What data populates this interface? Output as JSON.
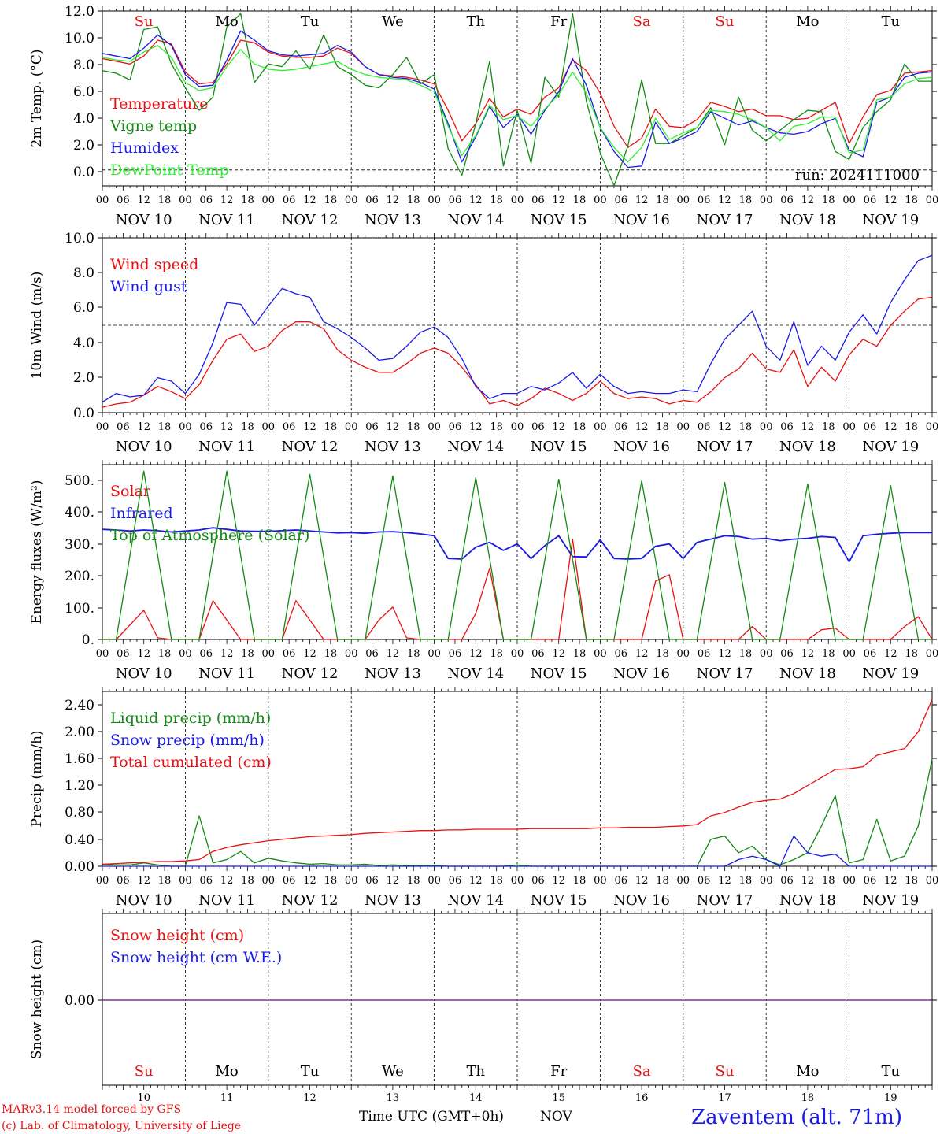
{
  "chart_data": [
    {
      "type": "line",
      "ylabel": "2m Temp. (°C)",
      "yticks": [
        "12.0",
        "10.0",
        "8.0",
        "6.0",
        "4.0",
        "2.0",
        "0.0"
      ],
      "ylim": [
        -1.2,
        12.0
      ],
      "reference_line": 0.0,
      "annotation": "run: 2024111000",
      "day_labels": [
        "Su",
        "Mo",
        "Tu",
        "We",
        "Th",
        "Fr",
        "Sa",
        "Su",
        "Mo",
        "Tu"
      ],
      "day_label_colors": [
        "#e81010",
        "#000000",
        "#000000",
        "#000000",
        "#000000",
        "#000000",
        "#e81010",
        "#e81010",
        "#000000",
        "#000000"
      ],
      "x_start_hour": 0,
      "x_step_hours": 6,
      "series": [
        {
          "name": "Temperature",
          "color": "#e81010",
          "values": [
            8.4,
            8.2,
            8.0,
            8.6,
            9.8,
            9.5,
            7.4,
            6.5,
            6.6,
            8.0,
            9.8,
            9.6,
            8.9,
            8.6,
            8.5,
            8.5,
            8.6,
            9.2,
            8.8,
            7.8,
            7.2,
            7.1,
            7.0,
            6.8,
            6.5,
            4.5,
            2.2,
            3.5,
            5.4,
            4.0,
            4.6,
            4.2,
            5.5,
            6.2,
            8.3,
            7.5,
            5.8,
            3.3,
            1.7,
            2.4,
            4.6,
            3.3,
            3.2,
            3.8,
            5.1,
            4.8,
            4.4,
            4.6,
            4.1,
            4.1,
            3.8,
            3.9,
            4.5,
            5.1,
            2.0,
            4.0,
            5.7,
            6.0,
            7.3,
            7.4,
            7.5
          ]
        },
        {
          "name": "Vigne temp",
          "color": "#138a13",
          "values": [
            7.5,
            7.3,
            6.8,
            10.6,
            10.8,
            8.0,
            6.2,
            4.5,
            5.5,
            10.8,
            11.8,
            6.6,
            8.0,
            7.8,
            9.0,
            7.6,
            10.2,
            7.8,
            7.2,
            6.4,
            6.2,
            7.2,
            8.5,
            6.5,
            7.2,
            1.6,
            -0.4,
            3.5,
            8.2,
            0.3,
            4.5,
            0.5,
            7.0,
            5.5,
            11.8,
            5.2,
            1.3,
            -1.2,
            1.8,
            6.8,
            2.0,
            2.0,
            2.6,
            3.2,
            4.7,
            1.9,
            5.5,
            3.0,
            2.2,
            3.0,
            3.8,
            4.5,
            4.4,
            1.4,
            0.8,
            3.2,
            4.4,
            5.3,
            8.0,
            6.7,
            6.7
          ]
        },
        {
          "name": "Humidex",
          "color": "#1a1ae6",
          "values": [
            8.8,
            8.6,
            8.4,
            9.2,
            10.2,
            9.4,
            7.2,
            6.3,
            6.4,
            8.3,
            10.5,
            9.8,
            9.0,
            8.7,
            8.6,
            8.7,
            8.8,
            9.4,
            8.9,
            7.8,
            7.2,
            7.0,
            6.9,
            6.6,
            6.1,
            3.5,
            0.6,
            2.5,
            4.8,
            3.2,
            4.2,
            2.7,
            4.5,
            5.9,
            8.4,
            6.4,
            3.2,
            1.4,
            0.2,
            0.3,
            3.6,
            2.0,
            2.4,
            2.9,
            4.4,
            3.9,
            3.4,
            3.7,
            3.2,
            2.8,
            2.7,
            2.9,
            3.5,
            3.9,
            1.5,
            1.0,
            5.1,
            5.5,
            7.0,
            7.3,
            7.4
          ]
        },
        {
          "name": "DewPoint Temp",
          "color": "#33ee33",
          "values": [
            8.5,
            8.3,
            8.2,
            8.9,
            9.4,
            8.5,
            6.6,
            6.0,
            6.2,
            7.8,
            9.1,
            8.0,
            7.6,
            7.5,
            7.6,
            7.8,
            8.0,
            8.2,
            7.6,
            7.2,
            7.0,
            6.9,
            6.8,
            6.4,
            5.9,
            3.3,
            1.1,
            2.6,
            4.9,
            3.8,
            4.1,
            3.3,
            4.6,
            5.7,
            7.4,
            5.8,
            3.2,
            1.7,
            0.6,
            1.7,
            3.9,
            2.3,
            2.8,
            3.2,
            4.5,
            4.4,
            4.2,
            3.8,
            3.2,
            2.2,
            3.3,
            3.5,
            4.0,
            4.0,
            1.3,
            1.5,
            5.3,
            5.5,
            6.5,
            6.9,
            7.0
          ]
        }
      ]
    },
    {
      "type": "line",
      "ylabel": "10m Wind (m/s)",
      "yticks": [
        "10.0",
        "8.0",
        "6.0",
        "4.0",
        "2.0",
        "0.0"
      ],
      "ylim": [
        0,
        10
      ],
      "reference_line": 5.0,
      "x_start_hour": 0,
      "x_step_hours": 6,
      "series": [
        {
          "name": "Wind speed",
          "color": "#e81010",
          "values": [
            0.3,
            0.5,
            0.6,
            1.0,
            1.5,
            1.2,
            0.8,
            1.6,
            3.0,
            4.2,
            4.5,
            3.5,
            3.8,
            4.7,
            5.2,
            5.2,
            4.8,
            3.6,
            3.0,
            2.6,
            2.3,
            2.3,
            2.8,
            3.4,
            3.7,
            3.4,
            2.6,
            1.6,
            0.5,
            0.7,
            0.4,
            0.8,
            1.4,
            1.1,
            0.7,
            1.1,
            1.8,
            1.1,
            0.8,
            0.9,
            0.8,
            0.5,
            0.7,
            0.6,
            1.2,
            2.0,
            2.5,
            3.4,
            2.5,
            2.3,
            3.6,
            1.5,
            2.6,
            1.8,
            3.3,
            4.2,
            3.8,
            5.0,
            5.8,
            6.5,
            6.6
          ]
        },
        {
          "name": "Wind gust",
          "color": "#1a1ae6",
          "values": [
            0.6,
            1.1,
            0.9,
            1.0,
            2.0,
            1.8,
            1.1,
            2.2,
            4.0,
            6.3,
            6.2,
            5.0,
            6.1,
            7.1,
            6.8,
            6.6,
            5.2,
            4.8,
            4.3,
            3.7,
            3.0,
            3.1,
            3.8,
            4.6,
            4.9,
            4.3,
            3.1,
            1.5,
            0.8,
            1.1,
            1.1,
            1.5,
            1.3,
            1.7,
            2.3,
            1.4,
            2.2,
            1.5,
            1.1,
            1.2,
            1.1,
            1.1,
            1.3,
            1.2,
            2.8,
            4.2,
            5.0,
            5.8,
            3.8,
            3.0,
            5.2,
            2.7,
            3.8,
            3.0,
            4.6,
            5.6,
            4.5,
            6.3,
            7.6,
            8.7,
            9.0
          ]
        }
      ]
    },
    {
      "type": "line",
      "ylabel": "Energy fluxes (W/m²)",
      "yticks": [
        "500.",
        "400.",
        "300.",
        "200.",
        "100.",
        "0."
      ],
      "ylim": [
        0,
        540
      ],
      "x_start_hour": 0,
      "x_step_hours": 6,
      "series": [
        {
          "name": "Solar",
          "color": "#e81010",
          "values": [
            0,
            0,
            45,
            90,
            5,
            0,
            0,
            0,
            120,
            60,
            0,
            0,
            0,
            0,
            120,
            60,
            0,
            0,
            0,
            0,
            60,
            100,
            5,
            0,
            0,
            0,
            0,
            80,
            220,
            0,
            0,
            0,
            0,
            0,
            310,
            0,
            0,
            0,
            0,
            0,
            180,
            200,
            0,
            0,
            0,
            0,
            0,
            40,
            0,
            0,
            0,
            0,
            30,
            35,
            0,
            0,
            0,
            0,
            40,
            70,
            0
          ]
        },
        {
          "name": "Infrared",
          "color": "#1a1ae6",
          "values": [
            340,
            338,
            335,
            338,
            336,
            332,
            335,
            338,
            345,
            340,
            335,
            334,
            334,
            336,
            338,
            335,
            332,
            329,
            330,
            328,
            332,
            333,
            330,
            326,
            320,
            250,
            248,
            285,
            300,
            275,
            295,
            250,
            290,
            320,
            256,
            255,
            308,
            250,
            248,
            250,
            288,
            295,
            250,
            300,
            310,
            320,
            318,
            310,
            312,
            305,
            310,
            312,
            318,
            315,
            240,
            320,
            325,
            328,
            330,
            330,
            330
          ]
        },
        {
          "name": "Top of Atmosphere (Solar)",
          "color": "#138a13",
          "values": [
            0,
            0,
            260,
            520,
            260,
            0,
            0,
            0,
            260,
            520,
            260,
            0,
            0,
            0,
            255,
            510,
            255,
            0,
            0,
            0,
            252,
            505,
            252,
            0,
            0,
            0,
            250,
            500,
            250,
            0,
            0,
            0,
            247,
            495,
            247,
            0,
            0,
            0,
            245,
            490,
            245,
            0,
            0,
            0,
            242,
            485,
            242,
            0,
            0,
            0,
            240,
            480,
            240,
            0,
            0,
            0,
            237,
            475,
            237,
            0,
            0
          ]
        }
      ]
    },
    {
      "type": "line",
      "ylabel": "Precip (mm/h)",
      "yticks": [
        "2.40",
        "2.00",
        "1.60",
        "1.20",
        "0.80",
        "0.40",
        "0.00"
      ],
      "ylim": [
        0,
        2.6
      ],
      "x_start_hour": 0,
      "x_step_hours": 6,
      "series": [
        {
          "name": "Liquid precip (mm/h)",
          "color": "#138a13",
          "values": [
            0.03,
            0.02,
            0.02,
            0.05,
            0.02,
            0.0,
            0.0,
            0.75,
            0.05,
            0.1,
            0.22,
            0.05,
            0.12,
            0.08,
            0.05,
            0.03,
            0.04,
            0.02,
            0.02,
            0.03,
            0.01,
            0.02,
            0.01,
            0.01,
            0.01,
            0.0,
            0.0,
            0.0,
            0.0,
            0.0,
            0.02,
            0.0,
            0.0,
            0.0,
            0.0,
            0.0,
            0.0,
            0.0,
            0.0,
            0.0,
            0.0,
            0.0,
            0.0,
            0.0,
            0.4,
            0.45,
            0.2,
            0.3,
            0.1,
            0.02,
            0.1,
            0.2,
            0.6,
            1.05,
            0.05,
            0.1,
            0.7,
            0.08,
            0.15,
            0.6,
            1.6
          ]
        },
        {
          "name": "Snow precip (mm/h)",
          "color": "#1a1ae6",
          "values": [
            0.0,
            0.0,
            0.0,
            0.0,
            0.0,
            0.0,
            0.0,
            0.0,
            0.0,
            0.0,
            0.0,
            0.0,
            0.0,
            0.0,
            0.0,
            0.0,
            0.0,
            0.0,
            0.0,
            0.0,
            0.0,
            0.0,
            0.0,
            0.0,
            0.0,
            0.0,
            0.0,
            0.0,
            0.0,
            0.0,
            0.0,
            0.0,
            0.0,
            0.0,
            0.0,
            0.0,
            0.0,
            0.0,
            0.0,
            0.0,
            0.0,
            0.0,
            0.0,
            0.0,
            0.0,
            0.0,
            0.1,
            0.15,
            0.1,
            0.0,
            0.45,
            0.2,
            0.15,
            0.18,
            0.0,
            0.0,
            0.0,
            0.0,
            0.0,
            0.0,
            0.0
          ]
        },
        {
          "name": "Total cumulated (cm)",
          "color": "#e81010",
          "values": [
            0.03,
            0.04,
            0.05,
            0.06,
            0.07,
            0.07,
            0.08,
            0.1,
            0.22,
            0.28,
            0.32,
            0.35,
            0.38,
            0.4,
            0.42,
            0.44,
            0.45,
            0.46,
            0.47,
            0.49,
            0.5,
            0.51,
            0.52,
            0.53,
            0.53,
            0.54,
            0.54,
            0.55,
            0.55,
            0.55,
            0.55,
            0.56,
            0.56,
            0.56,
            0.56,
            0.56,
            0.57,
            0.57,
            0.58,
            0.58,
            0.58,
            0.59,
            0.6,
            0.62,
            0.75,
            0.8,
            0.88,
            0.95,
            0.98,
            1.0,
            1.08,
            1.2,
            1.32,
            1.44,
            1.45,
            1.48,
            1.65,
            1.7,
            1.75,
            2.0,
            2.48
          ]
        }
      ]
    },
    {
      "type": "line",
      "ylabel": "Snow height (cm)",
      "yticks": [
        "0.00"
      ],
      "ylim": [
        -1,
        1
      ],
      "x_start_hour": 0,
      "x_step_hours": 6,
      "day_labels": [
        "Su",
        "Mo",
        "Tu",
        "We",
        "Th",
        "Fr",
        "Sa",
        "Su",
        "Mo",
        "Tu"
      ],
      "day_label_colors": [
        "#e81010",
        "#000000",
        "#000000",
        "#000000",
        "#000000",
        "#000000",
        "#e81010",
        "#e81010",
        "#000000",
        "#000000"
      ],
      "day_numbers": [
        "10",
        "11",
        "12",
        "13",
        "14",
        "15",
        "16",
        "17",
        "18",
        "19"
      ],
      "series": [
        {
          "name": "Snow height (cm)",
          "color": "#e81010",
          "values": [
            0.0,
            0.0
          ]
        },
        {
          "name": "Snow height (cm W.E.)",
          "color": "#1a1ae6",
          "values": [
            0.0,
            0.0
          ]
        }
      ]
    }
  ],
  "x_axis": {
    "hour_ticks": [
      "00",
      "06",
      "12",
      "18"
    ],
    "dates": [
      "NOV 10",
      "NOV 11",
      "NOV 12",
      "NOV 13",
      "NOV 14",
      "NOV 15",
      "NOV 16",
      "NOV 17",
      "NOV 18",
      "NOV 19"
    ],
    "final_hour": "00",
    "xlabel": "Time UTC (GMT+0h)",
    "month": "NOV"
  },
  "footer": {
    "credit_line1": "MARv3.14 model forced by GFS",
    "credit_line2": "(c) Lab. of Climatology, University of Liege",
    "station": "Zaventem (alt. 71m)"
  },
  "colors": {
    "credit": "#e81010",
    "station": "#1a1ae6",
    "snow_zero_line": "#7a2a9a"
  }
}
